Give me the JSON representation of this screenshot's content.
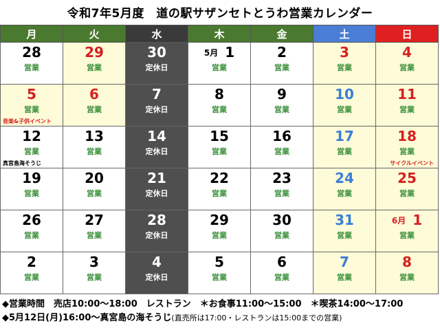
{
  "title": "令和7年5月度　道の駅サザンセトとうわ営業カレンダー",
  "colors": {
    "weekday_header": "#4a7a2f",
    "wed_header": "#3a3a3a",
    "sat_header": "#4a7ed6",
    "sun_header": "#e02020",
    "closed_cell": "#4f4f4f",
    "holiday_cell": "#fdfbd8",
    "open_text": "#3a8f3a",
    "holiday_num": "#d62020",
    "sat_num": "#3a7ed6",
    "note_red": "#d62020"
  },
  "headers": [
    "月",
    "火",
    "水",
    "木",
    "金",
    "土",
    "日"
  ],
  "weeks": [
    [
      {
        "num": "28",
        "status": "営業",
        "type": "normal"
      },
      {
        "num": "29",
        "status": "営業",
        "type": "holiday"
      },
      {
        "num": "30",
        "status": "定休日",
        "type": "closed"
      },
      {
        "month": "5月",
        "num": "1",
        "status": "営業",
        "type": "normal"
      },
      {
        "num": "2",
        "status": "営業",
        "type": "normal"
      },
      {
        "num": "3",
        "status": "営業",
        "type": "holiday"
      },
      {
        "num": "4",
        "status": "営業",
        "type": "holiday"
      }
    ],
    [
      {
        "num": "5",
        "status": "営業",
        "type": "holiday",
        "note": "音楽&子供イベント",
        "note_color": "red"
      },
      {
        "num": "6",
        "status": "営業",
        "type": "holiday"
      },
      {
        "num": "7",
        "status": "定休日",
        "type": "closed"
      },
      {
        "num": "8",
        "status": "営業",
        "type": "normal"
      },
      {
        "num": "9",
        "status": "営業",
        "type": "normal"
      },
      {
        "num": "10",
        "status": "営業",
        "type": "saturday"
      },
      {
        "num": "11",
        "status": "営業",
        "type": "holiday"
      }
    ],
    [
      {
        "num": "12",
        "status": "営業",
        "type": "normal",
        "note": "真宮島海そうじ",
        "note_color": "black"
      },
      {
        "num": "13",
        "status": "営業",
        "type": "normal"
      },
      {
        "num": "14",
        "status": "定休日",
        "type": "closed"
      },
      {
        "num": "15",
        "status": "営業",
        "type": "normal"
      },
      {
        "num": "16",
        "status": "営業",
        "type": "normal"
      },
      {
        "num": "17",
        "status": "営業",
        "type": "saturday"
      },
      {
        "num": "18",
        "status": "営業",
        "type": "holiday",
        "note": "サイクルイベント",
        "note_color": "red",
        "note_align": "right"
      }
    ],
    [
      {
        "num": "19",
        "status": "営業",
        "type": "normal"
      },
      {
        "num": "20",
        "status": "営業",
        "type": "normal"
      },
      {
        "num": "21",
        "status": "定休日",
        "type": "closed"
      },
      {
        "num": "22",
        "status": "営業",
        "type": "normal"
      },
      {
        "num": "23",
        "status": "営業",
        "type": "normal"
      },
      {
        "num": "24",
        "status": "営業",
        "type": "saturday"
      },
      {
        "num": "25",
        "status": "営業",
        "type": "holiday"
      }
    ],
    [
      {
        "num": "26",
        "status": "営業",
        "type": "normal"
      },
      {
        "num": "27",
        "status": "営業",
        "type": "normal"
      },
      {
        "num": "28",
        "status": "定休日",
        "type": "closed"
      },
      {
        "num": "29",
        "status": "営業",
        "type": "normal"
      },
      {
        "num": "30",
        "status": "営業",
        "type": "normal"
      },
      {
        "num": "31",
        "status": "営業",
        "type": "saturday"
      },
      {
        "month": "6月",
        "num": "1",
        "status": "営業",
        "type": "holiday"
      }
    ],
    [
      {
        "num": "2",
        "status": "営業",
        "type": "normal"
      },
      {
        "num": "3",
        "status": "営業",
        "type": "normal"
      },
      {
        "num": "4",
        "status": "定休日",
        "type": "closed"
      },
      {
        "num": "5",
        "status": "営業",
        "type": "normal"
      },
      {
        "num": "6",
        "status": "営業",
        "type": "normal"
      },
      {
        "num": "7",
        "status": "営業",
        "type": "saturday"
      },
      {
        "num": "8",
        "status": "営業",
        "type": "holiday"
      }
    ]
  ],
  "footer": {
    "line1": "◆営業時間　売店10:00～18:00　レストラン　＊お食事11:00～15:00　＊喫茶14:00～17:00",
    "line2_main": "◆5月12日(月)16:00～真宮島の海そうじ",
    "line2_small": "(直売所は17:00・レストランは15:00までの営業)"
  }
}
